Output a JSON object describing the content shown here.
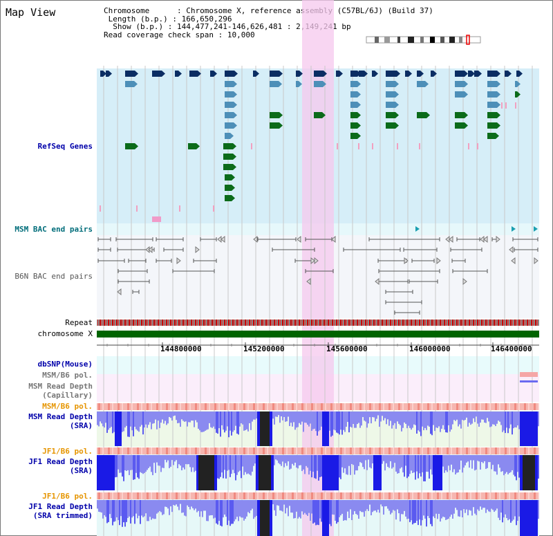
{
  "title": "Map View",
  "info": {
    "chromosome_key": "Chromosome",
    "chromosome_val": "Chromosome X, reference assembly (C57BL/6J) (Build 37)",
    "length_key": "Length (b.p.)",
    "length_val": "166,650,296",
    "show_key": "Show (b.p.)",
    "show_val": "144,477,241-146,626,481 : 2,149,241 bp",
    "read_key": "Read coverage check span",
    "read_val": "10,000"
  },
  "tracks": {
    "refseq": "RefSeq Genes",
    "msm_bac": "MSM BAC end pairs",
    "b6n_bac": "B6N BAC end pairs",
    "repeat": "Repeat",
    "chromosome": "chromosome X",
    "dbsnp": "dbSNP(Mouse)",
    "msm_b6_pol_1": "MSM/B6 pol.",
    "msm_read_depth_cap_1": "MSM Read Depth",
    "msm_read_depth_cap_2": "(Capillary)",
    "msm_b6_pol_2": "MSM/B6 pol.",
    "msm_read_depth_sra_1": "MSM Read Depth",
    "msm_read_depth_sra_2": "(SRA)",
    "jf1_b6_pol_1": "JF1/B6 pol.",
    "jf1_read_depth_1": "JF1 Read Depth",
    "jf1_read_depth_2": "(SRA)",
    "jf1_b6_pol_2": "JF1/B6 pol.",
    "jf1_trim_1": "JF1 Read Depth",
    "jf1_trim_2": "(SRA trimmed)"
  },
  "axis_ticks": [
    "144800000",
    "145200000",
    "145600000",
    "146000000",
    "146400000"
  ],
  "colors": {
    "refseq_bg": "#d6eef8",
    "bac_bg": "#e6f8fb",
    "highlight": "#f5d6f0",
    "gene_dark": "#0b2d63",
    "gene_mid": "#4d8fb8",
    "gene_green": "#0b6b1a",
    "pink": "#f2a0c0",
    "chrom_green": "#006400",
    "label_blue": "#0000aa",
    "label_orange": "#e69500",
    "depth_blue": "#3a3af0"
  }
}
